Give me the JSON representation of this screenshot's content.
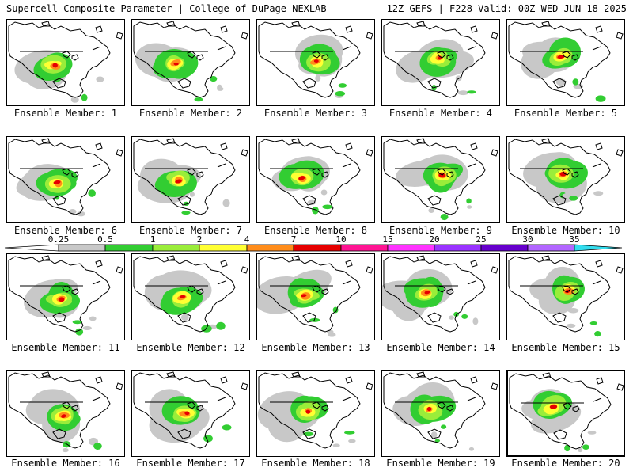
{
  "header": {
    "title_left": "Supercell Composite Parameter | College of DuPage NEXLAB",
    "title_right": "12Z GEFS | F228 Valid: 00Z WED JUN 18 2025"
  },
  "panels": [
    {
      "label": "Ensemble Member: 1"
    },
    {
      "label": "Ensemble Member: 2"
    },
    {
      "label": "Ensemble Member: 3"
    },
    {
      "label": "Ensemble Member: 4"
    },
    {
      "label": "Ensemble Member: 5"
    },
    {
      "label": "Ensemble Member: 6"
    },
    {
      "label": "Ensemble Member: 7"
    },
    {
      "label": "Ensemble Member: 8"
    },
    {
      "label": "Ensemble Member: 9"
    },
    {
      "label": "Ensemble Member: 10"
    },
    {
      "label": "Ensemble Member: 11"
    },
    {
      "label": "Ensemble Member: 12"
    },
    {
      "label": "Ensemble Member: 13"
    },
    {
      "label": "Ensemble Member: 14"
    },
    {
      "label": "Ensemble Member: 15"
    },
    {
      "label": "Ensemble Member: 16"
    },
    {
      "label": "Ensemble Member: 17"
    },
    {
      "label": "Ensemble Member: 18"
    },
    {
      "label": "Ensemble Member: 19"
    },
    {
      "label": "Ensemble Member: 20"
    }
  ],
  "colorbar": {
    "ticks": [
      "0.25",
      "0.5",
      "1",
      "2",
      "4",
      "7",
      "10",
      "15",
      "20",
      "25",
      "30",
      "35"
    ],
    "colors": [
      "#ffffff",
      "#c8c8c8",
      "#32cd32",
      "#9aed3a",
      "#ffff33",
      "#ff8c1a",
      "#e60000",
      "#ff1493",
      "#ff33ff",
      "#9933ff",
      "#6600cc",
      "#b266ff",
      "#33ddee"
    ]
  },
  "map_colors": {
    "coast": "#000000",
    "low": "#c8c8c8",
    "green": "#32cd32",
    "light_green": "#9aed3a",
    "yellow": "#ffff33",
    "orange": "#ff8c1a",
    "red": "#e60000"
  }
}
